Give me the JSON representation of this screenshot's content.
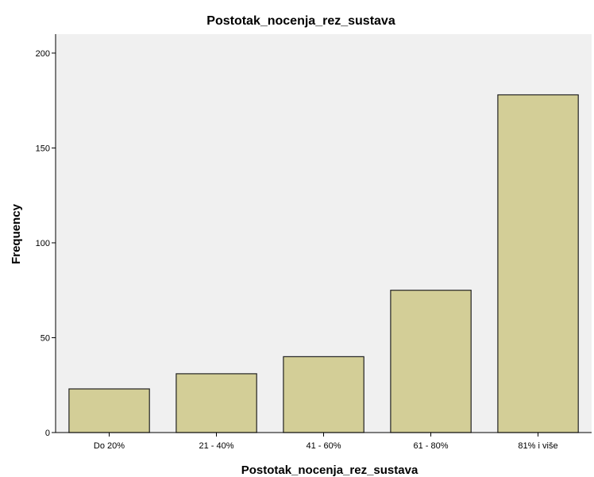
{
  "chart_data": {
    "type": "bar",
    "title": "Postotak_nocenja_rez_sustava",
    "xlabel": "Postotak_nocenja_rez_sustava",
    "ylabel": "Frequency",
    "categories": [
      "Do 20%",
      "21 - 40%",
      "41 - 60%",
      "61 - 80%",
      "81% i više"
    ],
    "values": [
      23,
      31,
      40,
      75,
      178
    ],
    "ylim": [
      0,
      210
    ],
    "yticks": [
      "0",
      "50",
      "100",
      "150",
      "200"
    ],
    "grid": false,
    "legend": "none",
    "colors": {
      "bar_fill": "#d3ce97",
      "bar_stroke": "#222222",
      "plot_background": "#f0f0f0",
      "axis": "#000000"
    }
  }
}
